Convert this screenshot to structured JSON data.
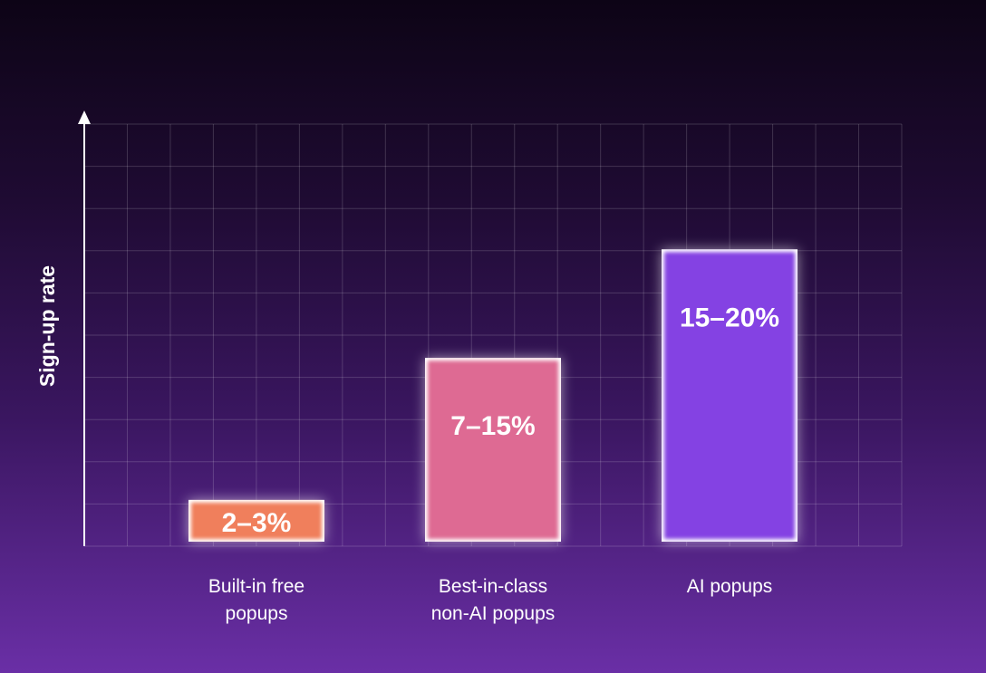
{
  "chart_data": {
    "type": "bar",
    "ylabel": "Sign-up rate",
    "categories": [
      "Built-in free\npopups",
      "Best-in-class\nnon-AI popups",
      "AI popups"
    ],
    "values": [
      2.5,
      11,
      17.5
    ],
    "value_labels": [
      "2–3%",
      "7–15%",
      "15–20%"
    ],
    "ylim": [
      0,
      25
    ],
    "grid": true,
    "legend": "none",
    "colors": [
      "#f07f5c",
      "#de6b93",
      "#8443e3"
    ]
  }
}
